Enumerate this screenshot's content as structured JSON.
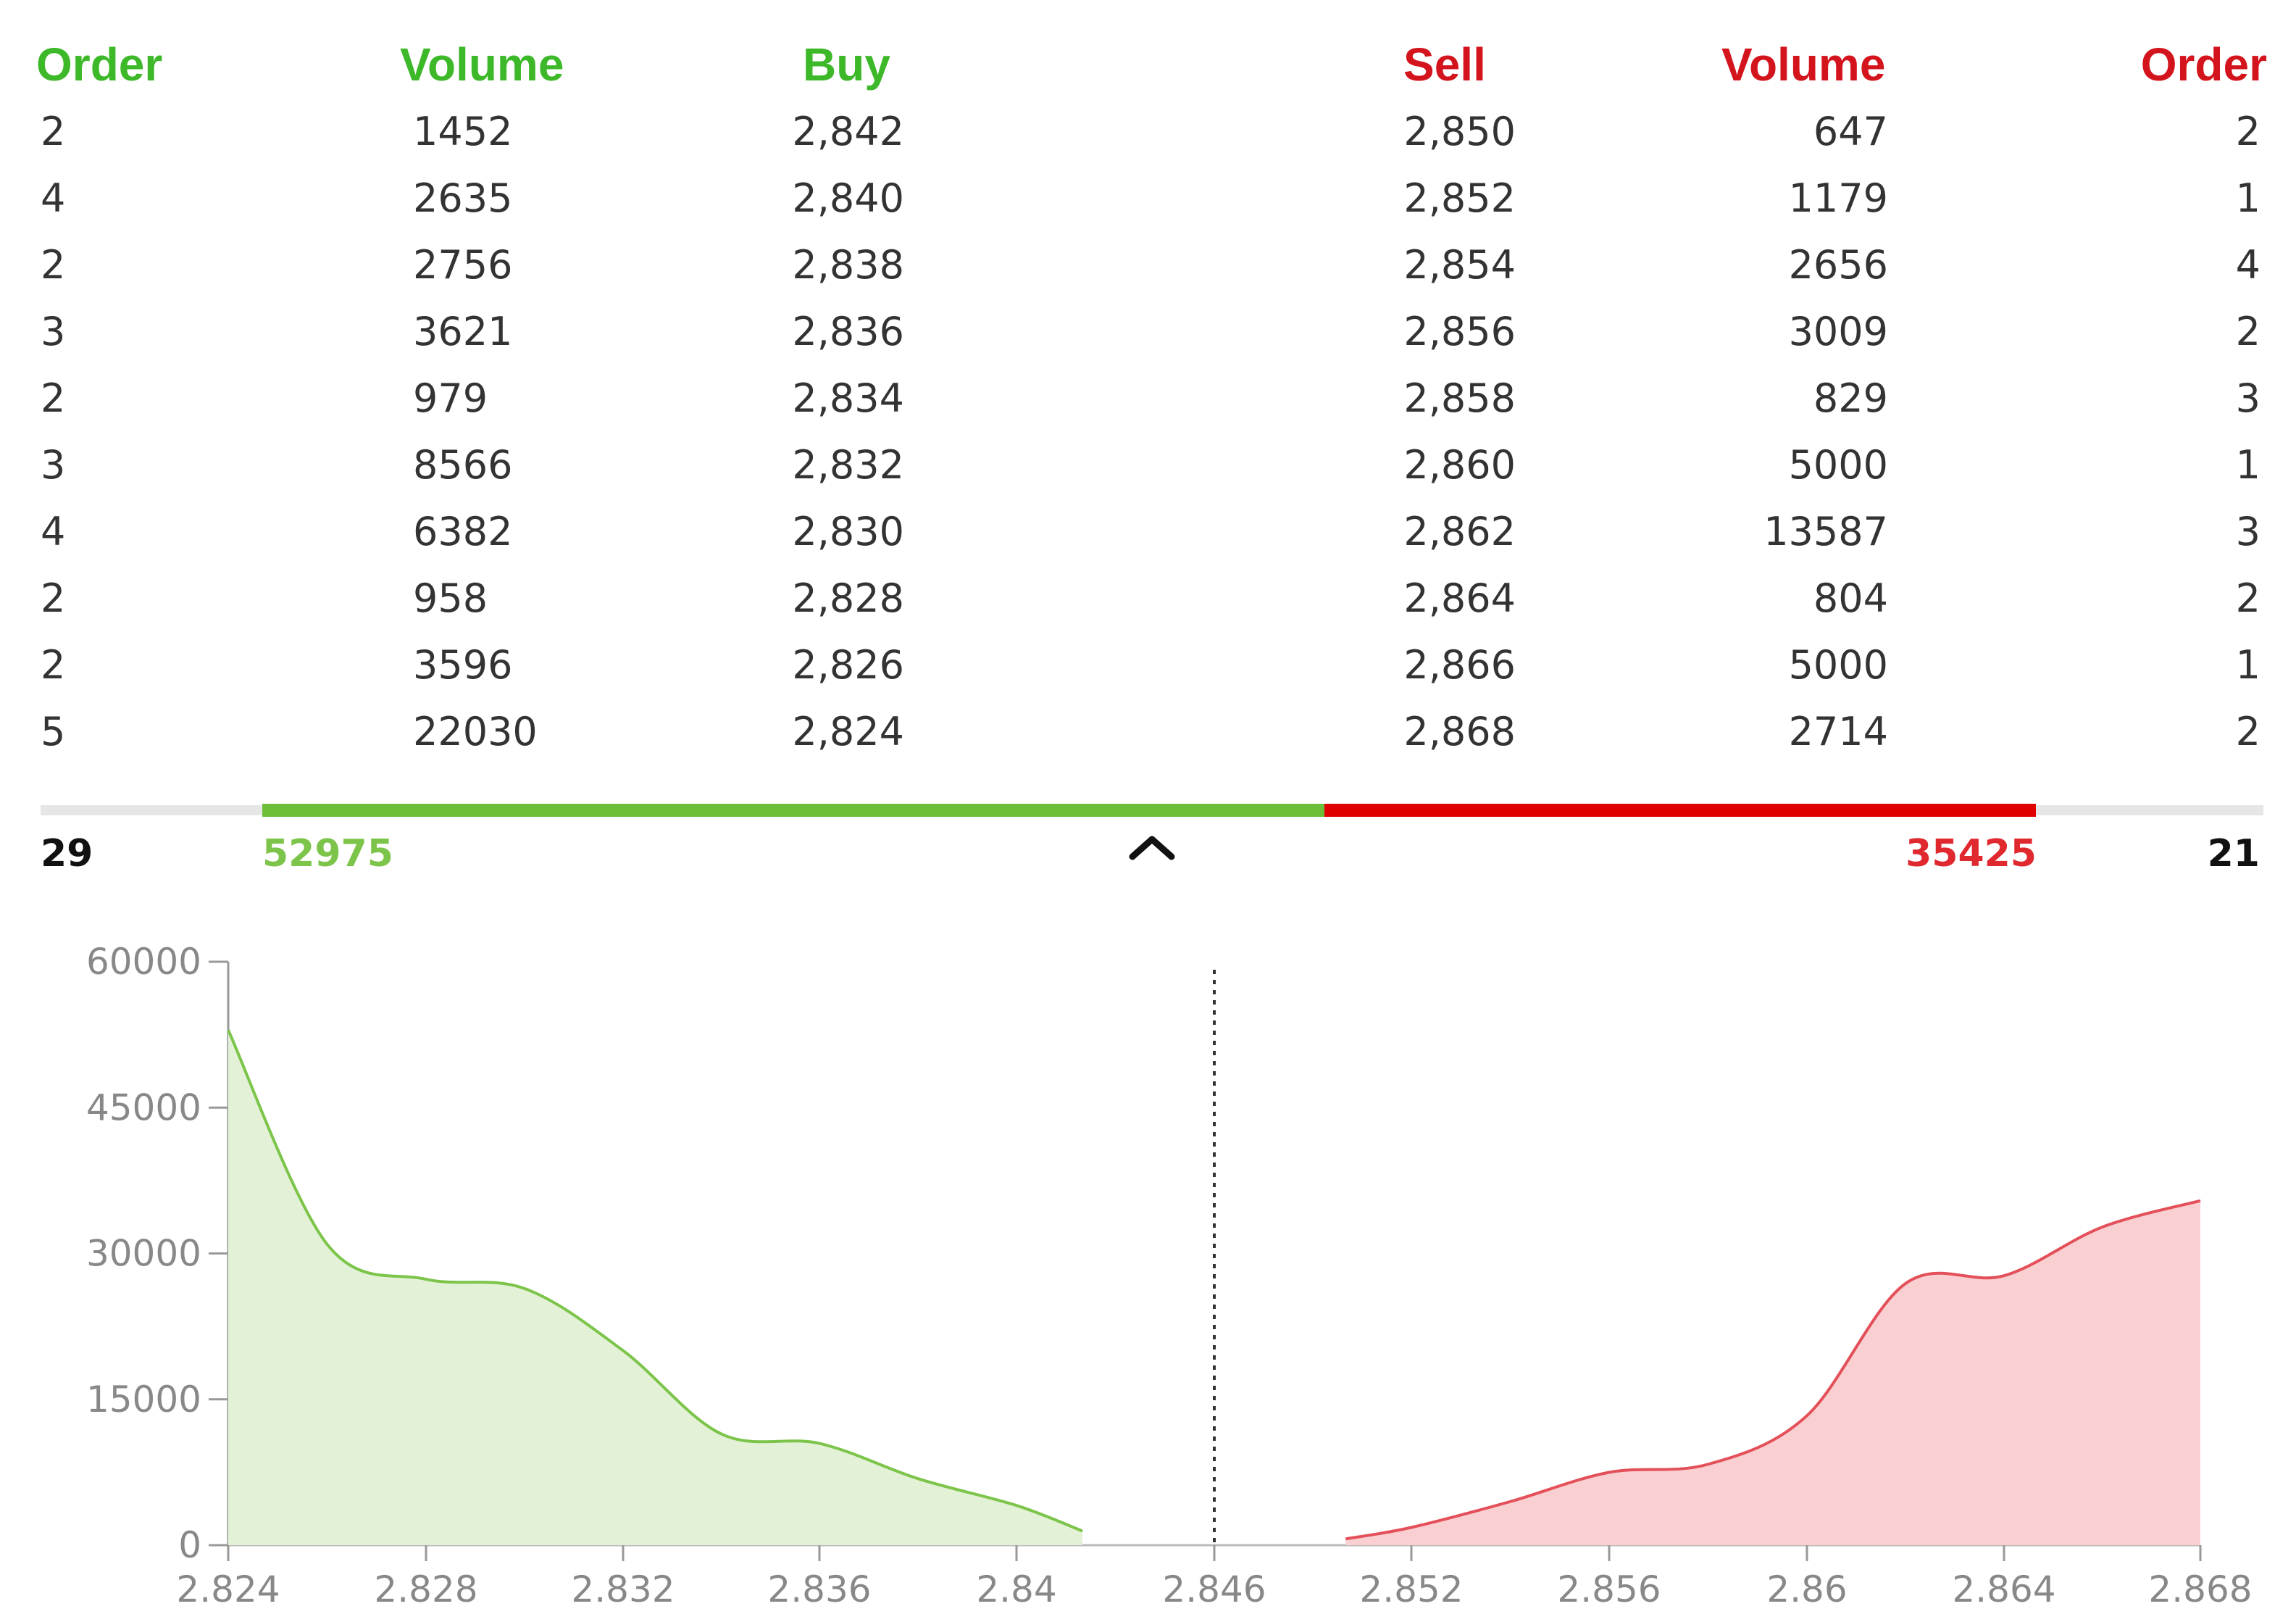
{
  "colors": {
    "buy": "#3cb829",
    "sell": "#d4141c",
    "buy_fill": "#e3f2d6",
    "buy_line": "#7cc44a",
    "sell_fill": "#f9cfd2",
    "sell_line": "#e4505a",
    "bar_buy": "#6dbf3a",
    "bar_sell": "#e00000",
    "bar_track": "#e6e6e6"
  },
  "headers": {
    "buy_order": "Order",
    "buy_volume": "Volume",
    "buy_price": "Buy",
    "sell_price": "Sell",
    "sell_volume": "Volume",
    "sell_order": "Order"
  },
  "rows": [
    {
      "buy_order": "2",
      "buy_volume": "1452",
      "buy_price": "2,842",
      "sell_price": "2,850",
      "sell_volume": "647",
      "sell_order": "2"
    },
    {
      "buy_order": "4",
      "buy_volume": "2635",
      "buy_price": "2,840",
      "sell_price": "2,852",
      "sell_volume": "1179",
      "sell_order": "1"
    },
    {
      "buy_order": "2",
      "buy_volume": "2756",
      "buy_price": "2,838",
      "sell_price": "2,854",
      "sell_volume": "2656",
      "sell_order": "4"
    },
    {
      "buy_order": "3",
      "buy_volume": "3621",
      "buy_price": "2,836",
      "sell_price": "2,856",
      "sell_volume": "3009",
      "sell_order": "2"
    },
    {
      "buy_order": "2",
      "buy_volume": "979",
      "buy_price": "2,834",
      "sell_price": "2,858",
      "sell_volume": "829",
      "sell_order": "3"
    },
    {
      "buy_order": "3",
      "buy_volume": "8566",
      "buy_price": "2,832",
      "sell_price": "2,860",
      "sell_volume": "5000",
      "sell_order": "1"
    },
    {
      "buy_order": "4",
      "buy_volume": "6382",
      "buy_price": "2,830",
      "sell_price": "2,862",
      "sell_volume": "13587",
      "sell_order": "3"
    },
    {
      "buy_order": "2",
      "buy_volume": "958",
      "buy_price": "2,828",
      "sell_price": "2,864",
      "sell_volume": "804",
      "sell_order": "2"
    },
    {
      "buy_order": "2",
      "buy_volume": "3596",
      "buy_price": "2,826",
      "sell_price": "2,866",
      "sell_volume": "5000",
      "sell_order": "1"
    },
    {
      "buy_order": "5",
      "buy_volume": "22030",
      "buy_price": "2,824",
      "sell_price": "2,868",
      "sell_volume": "2714",
      "sell_order": "2"
    }
  ],
  "totals": {
    "buy_orders": "29",
    "buy_volume": "52975",
    "sell_volume": "35425",
    "sell_orders": "21"
  },
  "balance": {
    "buy_fraction": 0.599
  },
  "toggle_icon": "chevron-up-icon",
  "chart_data": {
    "type": "area",
    "y_ticks": [
      "0",
      "15000",
      "30000",
      "45000",
      "60000"
    ],
    "x_ticks": [
      "2.824",
      "2.828",
      "2.832",
      "2.836",
      "2.84",
      "2.846",
      "2.852",
      "2.856",
      "2.86",
      "2.864",
      "2.868"
    ],
    "ylim": [
      0,
      60000
    ],
    "mid_price": 2.846,
    "buy_series": {
      "x": [
        2.824,
        2.826,
        2.828,
        2.83,
        2.832,
        2.834,
        2.836,
        2.838,
        2.84,
        2.842
      ],
      "y": [
        52975,
        30945,
        27349,
        26391,
        20009,
        11443,
        10464,
        6843,
        4087,
        1452
      ]
    },
    "sell_series": {
      "x": [
        2.85,
        2.852,
        2.854,
        2.856,
        2.858,
        2.86,
        2.862,
        2.864,
        2.866,
        2.868
      ],
      "y": [
        647,
        1826,
        4482,
        7491,
        8320,
        13320,
        26907,
        27711,
        32711,
        35425
      ]
    }
  }
}
